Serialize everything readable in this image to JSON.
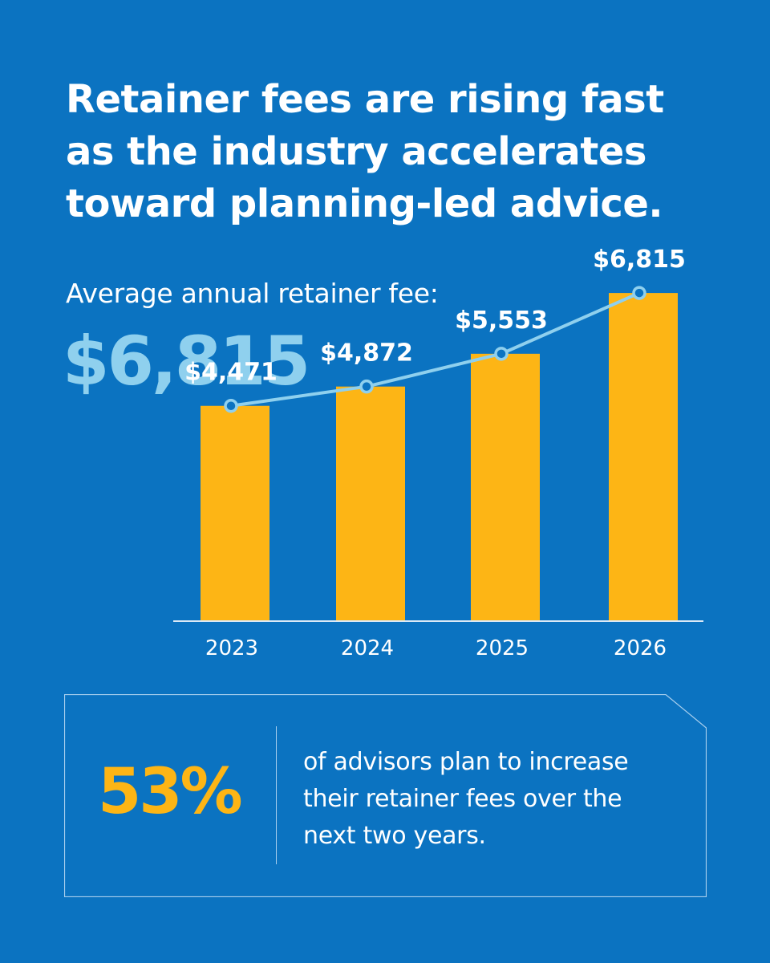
{
  "headline": {
    "lines": [
      "Retainer fees are rising fast",
      "as the industry accelerates",
      "toward planning-led advice."
    ]
  },
  "kpi": {
    "label": "Average annual retainer fee:",
    "value": "$6,815"
  },
  "chart_data": {
    "type": "bar",
    "categories": [
      "2023",
      "2024",
      "2025",
      "2026"
    ],
    "values": [
      4471,
      4872,
      5553,
      6815
    ],
    "data_labels": [
      "$4,471",
      "$4,872",
      "$5,553",
      "$6,815"
    ],
    "overlay": "line",
    "ylim": [
      0,
      7300
    ],
    "grid": false,
    "title": "",
    "xlabel": "",
    "ylabel": "",
    "colors": {
      "bar": "#fdb515",
      "line": "#8fd0ee",
      "axis": "#dbe9f6"
    }
  },
  "callout": {
    "stat": "53%",
    "text_lines": [
      "of advisors plan to increase",
      "their retainer fees over the",
      "next two years."
    ]
  },
  "colors": {
    "background": "#0b73c1",
    "accent_yellow": "#fdb515",
    "accent_light_blue": "#8fd0ee"
  }
}
